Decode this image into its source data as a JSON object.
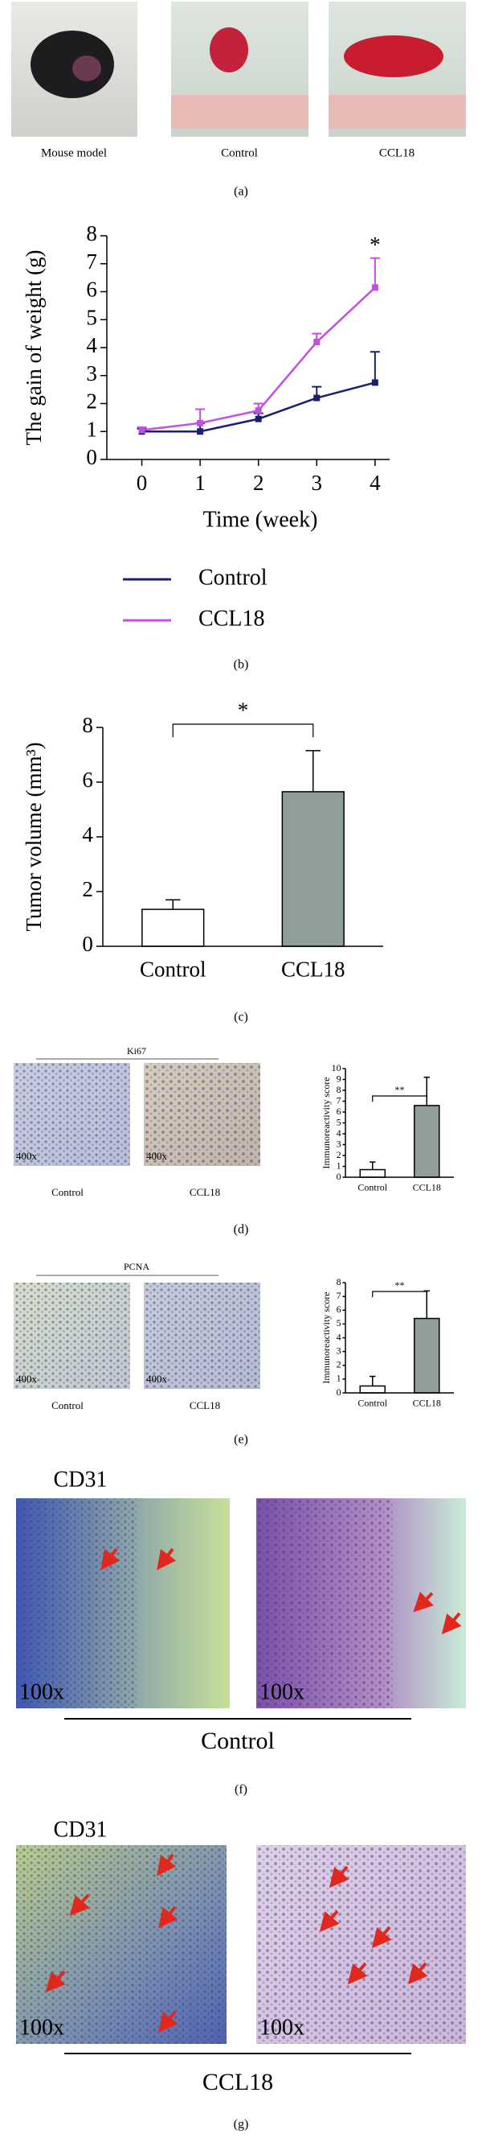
{
  "figure": {
    "panel_labels": [
      "(a)",
      "(b)",
      "(c)",
      "(d)",
      "(e)",
      "(f)",
      "(g)"
    ],
    "a_captions": [
      "Mouse model",
      "Control",
      "CCL18"
    ],
    "d_title": "Ki67",
    "d_captions": [
      "Control",
      "CCL18"
    ],
    "d_mag": "400x",
    "e_title": "PCNA",
    "e_captions": [
      "Control",
      "CCL18"
    ],
    "e_mag": "400x",
    "f_title": "CD31",
    "f_group": "Control",
    "f_mag": "100x",
    "g_title": "CD31",
    "g_group": "CCL18",
    "g_mag": "100x"
  },
  "chart_data": [
    {
      "type": "line",
      "xlabel": "Time (week)",
      "ylabel": "The gain of weight (g)",
      "x": [
        0,
        1,
        2,
        3,
        4
      ],
      "xlim": [
        -0.6,
        4.25
      ],
      "xticks": [
        0,
        1,
        2,
        3,
        4
      ],
      "ylim": [
        0,
        8
      ],
      "yticks": [
        0,
        1,
        2,
        3,
        4,
        5,
        6,
        7,
        8
      ],
      "series": [
        {
          "name": "Control",
          "color": "#1b1f6e",
          "values": [
            1.0,
            1.0,
            1.45,
            2.2,
            2.75
          ],
          "errors": [
            0.1,
            0.3,
            0.2,
            0.4,
            1.1
          ]
        },
        {
          "name": "CCL18",
          "color": "#c24fe0",
          "values": [
            1.05,
            1.3,
            1.75,
            4.2,
            6.15
          ],
          "errors": [
            0.1,
            0.5,
            0.25,
            0.3,
            1.05
          ]
        }
      ],
      "annotation": "*",
      "legend": "below"
    },
    {
      "type": "bar",
      "ylabel": "Tumor volume (mm³)",
      "categories": [
        "Control",
        "CCL18"
      ],
      "values": [
        1.35,
        5.65
      ],
      "errors": [
        0.35,
        1.5
      ],
      "colors": [
        "#ffffff",
        "#8f9e9a"
      ],
      "ylim": [
        0,
        8
      ],
      "yticks": [
        0,
        2,
        4,
        6,
        8
      ],
      "annotation": "*"
    },
    {
      "type": "bar",
      "ylabel": "Immunoreactivity score",
      "categories": [
        "Control",
        "CCL18"
      ],
      "values": [
        0.7,
        6.6
      ],
      "errors": [
        0.7,
        2.6
      ],
      "colors": [
        "#ffffff",
        "#8f9e9a"
      ],
      "ylim": [
        0,
        10
      ],
      "yticks": [
        0,
        1,
        2,
        3,
        4,
        5,
        6,
        7,
        8,
        9,
        10
      ],
      "annotation": "**"
    },
    {
      "type": "bar",
      "ylabel": "Immunoreactivity score",
      "categories": [
        "Control",
        "CCL18"
      ],
      "values": [
        0.5,
        5.4
      ],
      "errors": [
        0.7,
        2.0
      ],
      "colors": [
        "#ffffff",
        "#8f9e9a"
      ],
      "ylim": [
        0,
        8
      ],
      "yticks": [
        0,
        1,
        2,
        3,
        4,
        5,
        6,
        7,
        8
      ],
      "annotation": "**"
    }
  ]
}
